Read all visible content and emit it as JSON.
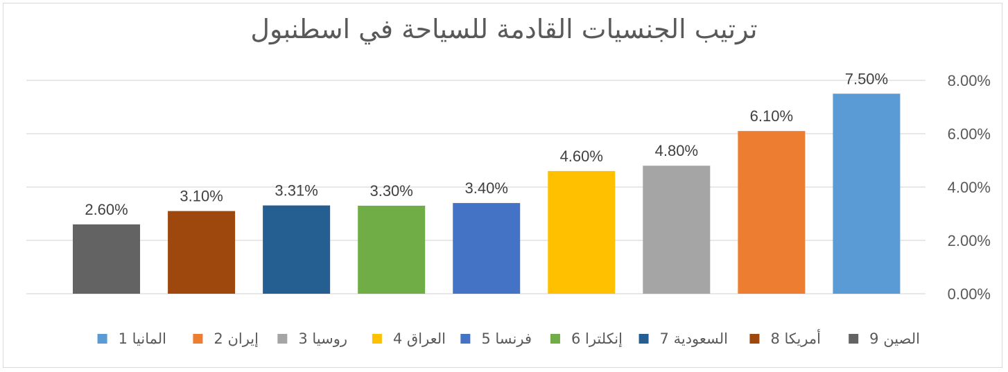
{
  "chart_data": {
    "type": "bar",
    "title": "ترتيب الجنسيات القادمة للسياحة في اسطنبول",
    "categories": [
      "9 الصين",
      "8 أمريكا",
      "7 السعودية",
      "6 إنكلترا",
      "5 فرنسا",
      "4 العراق",
      "3 روسيا",
      "2 إيران",
      "1 المانيا"
    ],
    "values": [
      2.6,
      3.1,
      3.31,
      3.3,
      3.4,
      4.6,
      4.8,
      6.1,
      7.5
    ],
    "data_labels": [
      "2.60%",
      "3.10%",
      "3.31%",
      "3.30%",
      "3.40%",
      "4.60%",
      "4.80%",
      "6.10%",
      "7.50%"
    ],
    "colors": [
      "#636363",
      "#9E480E",
      "#255E91",
      "#70AD47",
      "#4472C4",
      "#FFC000",
      "#A5A5A5",
      "#ED7D31",
      "#5B9BD5"
    ],
    "ylim": [
      0,
      8
    ],
    "yticks": [
      0,
      2,
      4,
      6,
      8
    ],
    "ytick_labels": [
      "0.00%",
      "2.00%",
      "4.00%",
      "6.00%",
      "8.00%"
    ],
    "y_axis_side": "right",
    "grid": true,
    "legend": {
      "position": "bottom",
      "order": [
        "1 المانيا",
        "2 إيران",
        "3 روسيا",
        "4 العراق",
        "5 فرنسا",
        "6 إنكلترا",
        "7 السعودية",
        "8 أمريكا",
        "9 الصين"
      ]
    }
  }
}
